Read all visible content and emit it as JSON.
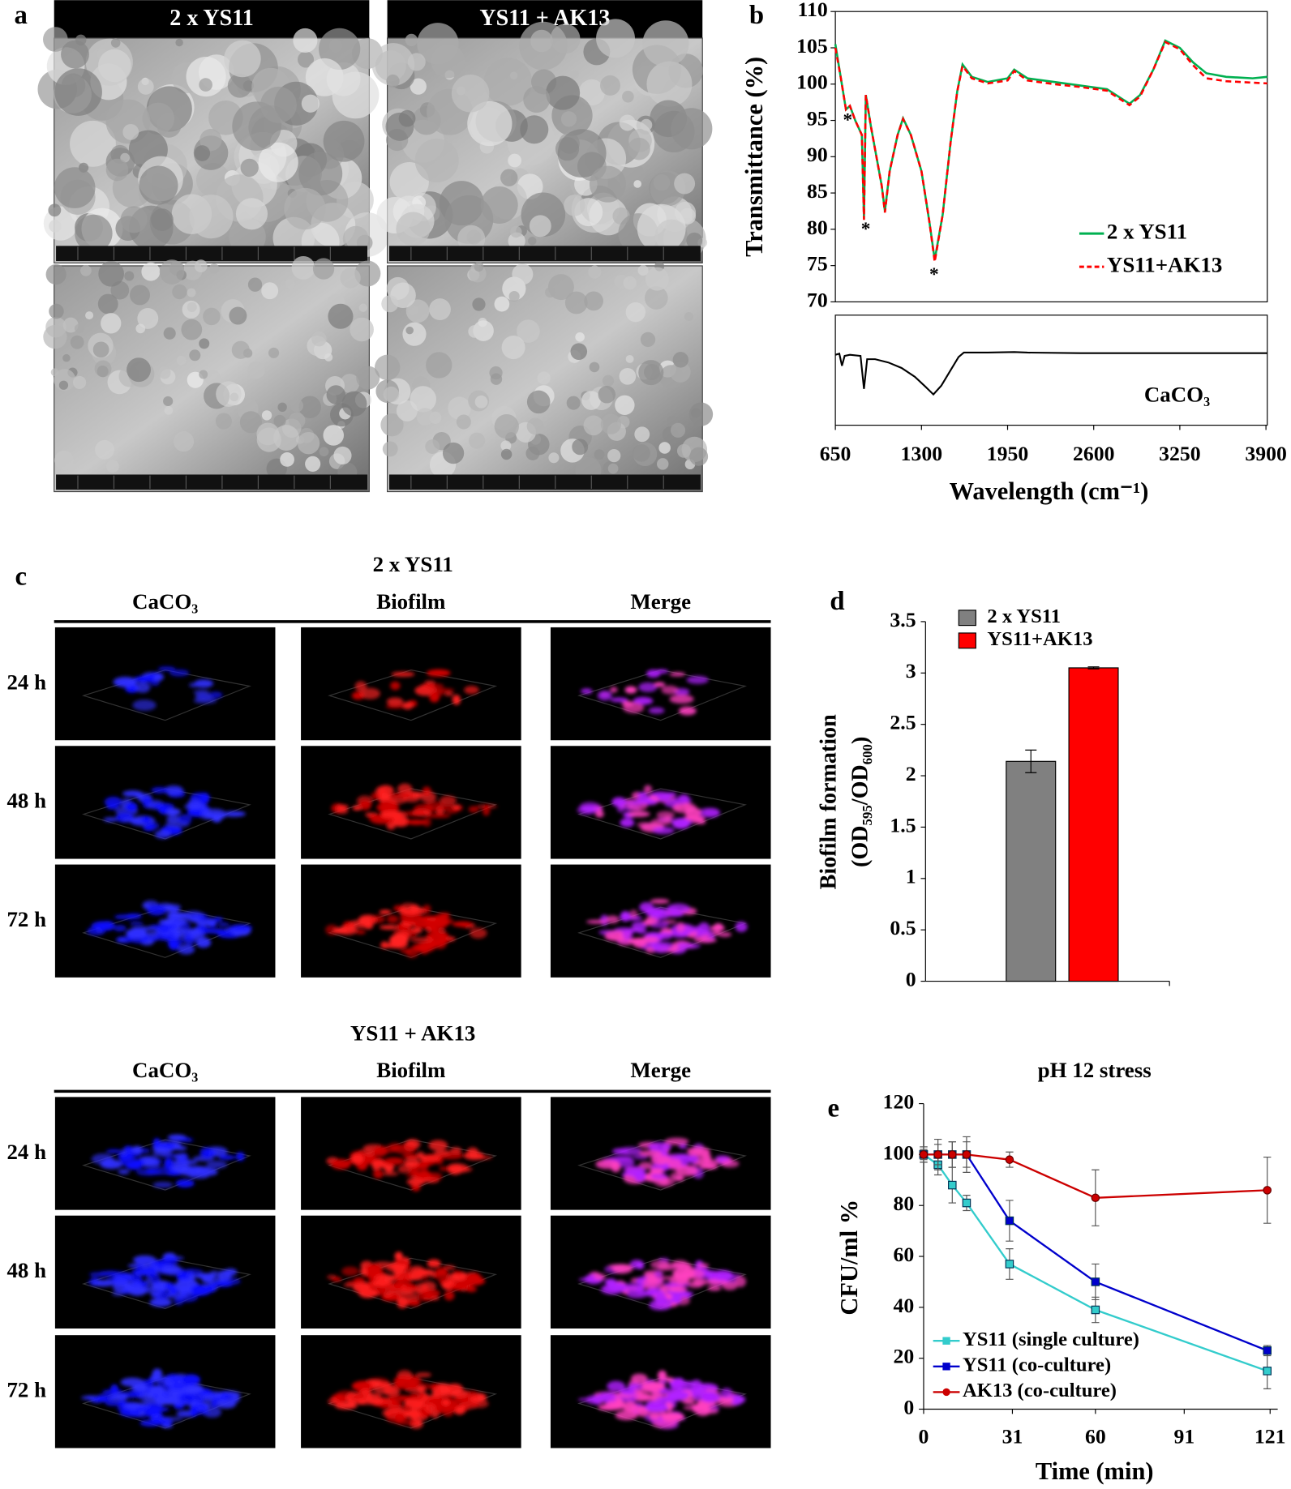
{
  "panel_labels": [
    "a",
    "b",
    "c",
    "d",
    "e"
  ],
  "sem": {
    "columns": [
      "2 x YS11",
      "YS11 + AK13"
    ]
  },
  "confocal": [
    {
      "title": "2 x YS11",
      "columns": [
        "CaCO₃",
        "Biofilm",
        "Merge"
      ],
      "rows": [
        "24 h",
        "48 h",
        "72 h"
      ]
    },
    {
      "title": "YS11 + AK13",
      "columns": [
        "CaCO₃",
        "Biofilm",
        "Merge"
      ],
      "rows": [
        "24 h",
        "48 h",
        "72 h"
      ]
    }
  ],
  "chart_data": [
    {
      "type": "line",
      "y_label": "Transmittance (%)",
      "xlim": [
        650,
        3910
      ],
      "ylim": [
        70,
        110
      ],
      "yticks": [
        70,
        75,
        80,
        85,
        90,
        95,
        100,
        105,
        110
      ],
      "legend": "lower right",
      "annotations": [
        "*",
        "*",
        "*"
      ],
      "x": [
        650,
        690,
        730,
        760,
        800,
        850,
        866,
        880,
        920,
        960,
        1000,
        1024,
        1060,
        1120,
        1161,
        1220,
        1300,
        1360,
        1400,
        1460,
        1520,
        1570,
        1610,
        1680,
        1800,
        1950,
        2000,
        2100,
        2300,
        2500,
        2700,
        2870,
        2950,
        3050,
        3140,
        3250,
        3350,
        3450,
        3600,
        3800,
        3910
      ],
      "series": [
        {
          "name": "2 x YS11",
          "color": "#00b050",
          "dashed": false,
          "values": [
            105.5,
            101,
            96.5,
            97,
            95,
            93,
            81.5,
            98.5,
            94,
            90,
            86,
            82.5,
            88,
            93,
            95.3,
            93,
            88,
            81,
            75.8,
            82,
            92,
            99,
            102.7,
            101,
            100.3,
            100.8,
            102,
            100.8,
            100.3,
            99.8,
            99.3,
            97.3,
            98.5,
            102,
            106,
            105,
            103,
            101.5,
            101,
            100.8,
            101
          ]
        },
        {
          "name": "YS11+AK13",
          "color": "#ff0000",
          "dashed": true,
          "values": [
            105,
            101,
            96.5,
            97,
            95,
            93,
            81.3,
            98.5,
            94,
            90,
            86,
            82.3,
            88,
            93,
            95.2,
            93,
            88,
            81,
            75.5,
            82,
            92,
            99,
            102.5,
            100.8,
            100.1,
            100.5,
            101.8,
            100.5,
            100,
            99.6,
            99.1,
            97.1,
            98.3,
            102,
            105.8,
            104.8,
            102.6,
            100.8,
            100.4,
            100.2,
            100.1
          ]
        }
      ]
    },
    {
      "type": "line",
      "label": "CaCO₃",
      "x_label": "Wavelength (cm⁻¹)",
      "xlim": [
        650,
        3910
      ],
      "ylim": [
        0,
        100
      ],
      "xticks": [
        650,
        1300,
        1950,
        2600,
        3250,
        3900
      ],
      "x": [
        650,
        680,
        700,
        720,
        760,
        840,
        866,
        890,
        950,
        1050,
        1150,
        1250,
        1330,
        1390,
        1450,
        1520,
        1580,
        1620,
        1800,
        2000,
        2100,
        2500,
        3000,
        3500,
        3910
      ],
      "series": [
        {
          "color": "#000000",
          "values": [
            64,
            65,
            54,
            63,
            64,
            63,
            33,
            60,
            60,
            57,
            52,
            44,
            35,
            28,
            36,
            50,
            62,
            66,
            66,
            66.5,
            66,
            65.5,
            65.5,
            65.5,
            65.5
          ]
        }
      ]
    },
    {
      "type": "bar",
      "y_label": [
        "Biofilm formation",
        "(OD₅₉₅/OD₆₀₀)"
      ],
      "ylim": [
        0,
        3.5
      ],
      "yticks": [
        0,
        0.5,
        1,
        1.5,
        2,
        2.5,
        3,
        3.5
      ],
      "legend": "upper left",
      "series": [
        {
          "name": "2 x YS11",
          "color": "#808080",
          "values": [
            2.14
          ],
          "errors": [
            0.11
          ]
        },
        {
          "name": "YS11+AK13",
          "color": "#ff0000",
          "values": [
            3.05
          ],
          "errors": [
            0.01
          ]
        }
      ]
    },
    {
      "type": "line",
      "title": "pH 12 stress",
      "x_label": "Time (min)",
      "y_label": "CFU/ml %",
      "xlim": [
        0,
        121
      ],
      "xticks": [
        0,
        31,
        60,
        91,
        121
      ],
      "ylim": [
        0,
        120
      ],
      "yticks": [
        0,
        20,
        40,
        60,
        80,
        100,
        120
      ],
      "legend": "lower left",
      "x": [
        0,
        5,
        10,
        15,
        30,
        60,
        120
      ],
      "series": [
        {
          "name": "YS11 (single culture)",
          "color": "#33cccc",
          "marker": "square",
          "values": [
            100,
            96,
            88,
            81,
            57,
            39,
            15
          ],
          "errors": [
            3,
            4,
            7,
            3,
            6,
            5,
            7
          ]
        },
        {
          "name": "YS11 (co-culture)",
          "color": "#0000cc",
          "marker": "square",
          "values": [
            100,
            100,
            100,
            100,
            74,
            50,
            23
          ],
          "errors": [
            3,
            4,
            5,
            5,
            8,
            7,
            2
          ]
        },
        {
          "name": "AK13 (co-culture)",
          "color": "#cc0000",
          "marker": "circle",
          "values": [
            100,
            100,
            100,
            100,
            98,
            83,
            86
          ],
          "errors": [
            2,
            6,
            5,
            7,
            3,
            11,
            13
          ]
        }
      ]
    }
  ]
}
